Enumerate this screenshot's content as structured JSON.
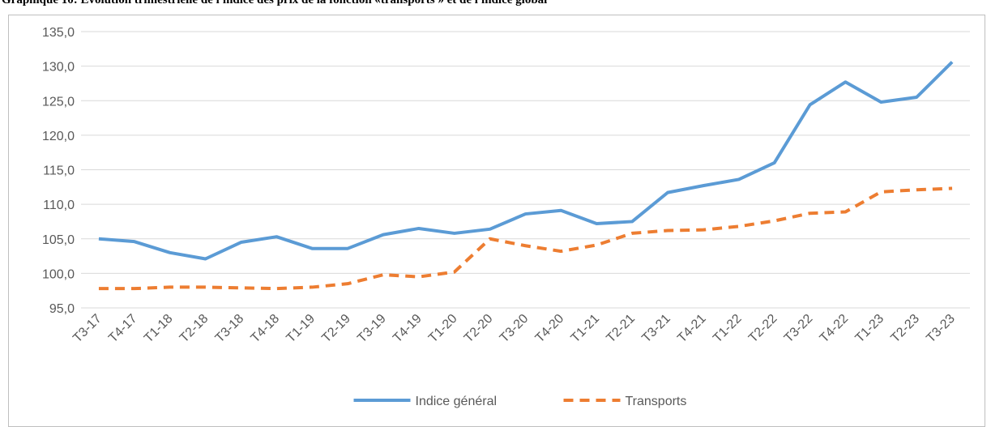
{
  "chart_data": {
    "type": "line",
    "title": "Graphique 10: Evolution trimestrielle de l'indice des prix de la fonction «transports » et de l'indice global",
    "categories": [
      "T3-17",
      "T4-17",
      "T1-18",
      "T2-18",
      "T3-18",
      "T4-18",
      "T1-19",
      "T2-19",
      "T3-19",
      "T4-19",
      "T1-20",
      "T2-20",
      "T3-20",
      "T4-20",
      "T1-21",
      "T2-21",
      "T3-21",
      "T4-21",
      "T1-22",
      "T2-22",
      "T3-22",
      "T4-22",
      "T1-23",
      "T2-23",
      "T3-23"
    ],
    "series": [
      {
        "name": "Indice général",
        "color": "#5b9bd5",
        "dashed": false,
        "values": [
          105.0,
          104.6,
          103.0,
          102.1,
          104.5,
          105.3,
          103.6,
          103.6,
          105.6,
          106.5,
          105.8,
          106.4,
          108.6,
          109.1,
          107.2,
          107.5,
          111.7,
          112.7,
          113.6,
          116.0,
          124.4,
          127.7,
          124.8,
          125.5,
          130.6
        ]
      },
      {
        "name": "Transports",
        "color": "#ed7d31",
        "dashed": true,
        "values": [
          97.8,
          97.8,
          98.0,
          98.0,
          97.9,
          97.8,
          98.0,
          98.5,
          99.8,
          99.5,
          100.2,
          105.0,
          104.0,
          103.2,
          104.1,
          105.8,
          106.2,
          106.3,
          106.8,
          107.6,
          108.7,
          108.9,
          111.8,
          112.1,
          112.3
        ]
      }
    ],
    "ylim": [
      95,
      135
    ],
    "yticks": [
      {
        "value": 95,
        "label": "95,0"
      },
      {
        "value": 100,
        "label": "100,0"
      },
      {
        "value": 105,
        "label": "105,0"
      },
      {
        "value": 110,
        "label": "110,0"
      },
      {
        "value": 115,
        "label": "115,0"
      },
      {
        "value": 120,
        "label": "120,0"
      },
      {
        "value": 125,
        "label": "125,0"
      },
      {
        "value": 130,
        "label": "130,0"
      },
      {
        "value": 135,
        "label": "135,0"
      }
    ],
    "grid": true,
    "legend": "bottom"
  }
}
